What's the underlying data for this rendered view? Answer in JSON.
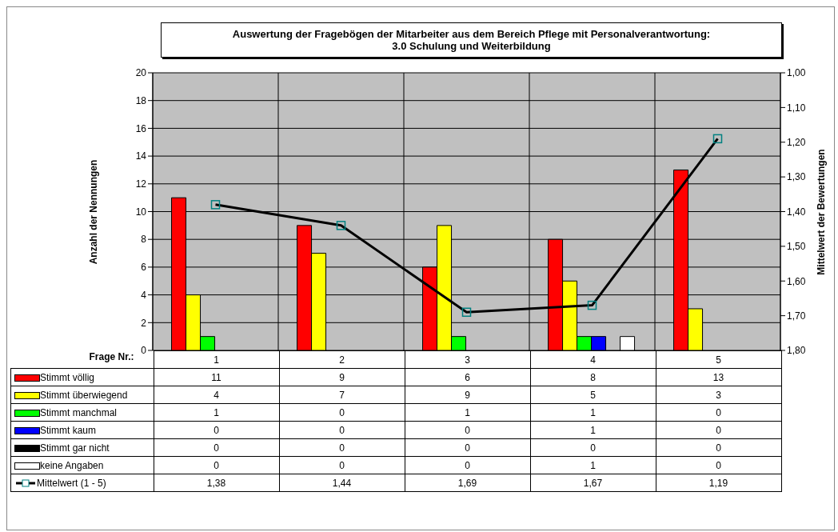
{
  "chart_data": {
    "type": "bar",
    "title": "Auswertung der Fragebögen der Mitarbeiter aus dem Bereich Pflege mit Personalverantwortung:",
    "subtitle": "3.0 Schulung und Weiterbildung",
    "xlabel": "Frage Nr.:",
    "ylabel": "Anzahl der Nennungen",
    "y2label": "Mittelwert der Bewertungen",
    "categories": [
      "1",
      "2",
      "3",
      "4",
      "5"
    ],
    "series": [
      {
        "name": "Stimmt völlig",
        "color": "#ff0000",
        "values": [
          11,
          9,
          6,
          8,
          13
        ],
        "value_labels": [
          "11",
          "9",
          "6",
          "8",
          "13"
        ]
      },
      {
        "name": "Stimmt überwiegend",
        "color": "#ffff00",
        "values": [
          4,
          7,
          9,
          5,
          3
        ],
        "value_labels": [
          "4",
          "7",
          "9",
          "5",
          "3"
        ]
      },
      {
        "name": "Stimmt manchmal",
        "color": "#00ff00",
        "values": [
          1,
          0,
          1,
          1,
          0
        ],
        "value_labels": [
          "1",
          "0",
          "1",
          "1",
          "0"
        ]
      },
      {
        "name": "Stimmt kaum",
        "color": "#0000ff",
        "values": [
          0,
          0,
          0,
          1,
          0
        ],
        "value_labels": [
          "0",
          "0",
          "0",
          "1",
          "0"
        ]
      },
      {
        "name": "Stimmt gar nicht",
        "color": "#000000",
        "values": [
          0,
          0,
          0,
          0,
          0
        ],
        "value_labels": [
          "0",
          "0",
          "0",
          "0",
          "0"
        ]
      },
      {
        "name": "keine Angaben",
        "color": "#ffffff",
        "values": [
          0,
          0,
          0,
          1,
          0
        ],
        "value_labels": [
          "0",
          "0",
          "0",
          "1",
          "0"
        ]
      },
      {
        "name": "Mittelwert (1 - 5)",
        "type": "line",
        "axis": "y2",
        "color": "#000000",
        "values": [
          1.38,
          1.44,
          1.69,
          1.67,
          1.19
        ],
        "value_labels": [
          "1,38",
          "1,44",
          "1,69",
          "1,67",
          "1,19"
        ]
      }
    ],
    "ylim": [
      0,
      20
    ],
    "yticks": [
      0,
      2,
      4,
      6,
      8,
      10,
      12,
      14,
      16,
      18,
      20
    ],
    "y2lim": [
      1.8,
      1.0
    ],
    "y2ticks": [
      {
        "value": 1.0,
        "label": "1,00"
      },
      {
        "value": 1.1,
        "label": "1,10"
      },
      {
        "value": 1.2,
        "label": "1,20"
      },
      {
        "value": 1.3,
        "label": "1,30"
      },
      {
        "value": 1.4,
        "label": "1,40"
      },
      {
        "value": 1.5,
        "label": "1,50"
      },
      {
        "value": 1.6,
        "label": "1,60"
      },
      {
        "value": 1.7,
        "label": "1,70"
      },
      {
        "value": 1.8,
        "label": "1,80"
      }
    ],
    "grid": true,
    "legend": "bottom",
    "marker": "square"
  }
}
